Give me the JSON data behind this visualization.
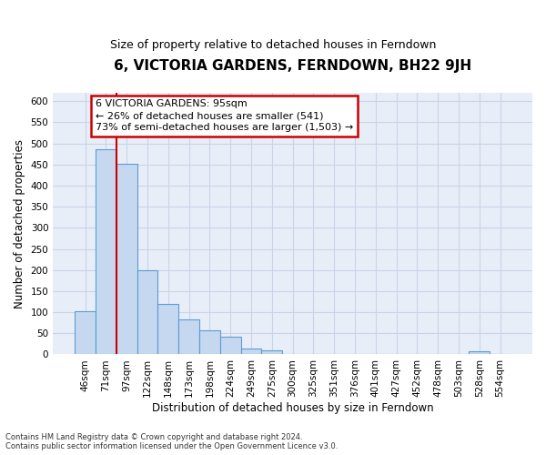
{
  "title": "6, VICTORIA GARDENS, FERNDOWN, BH22 9JH",
  "subtitle": "Size of property relative to detached houses in Ferndown",
  "xlabel": "Distribution of detached houses by size in Ferndown",
  "ylabel": "Number of detached properties",
  "footer_line1": "Contains HM Land Registry data © Crown copyright and database right 2024.",
  "footer_line2": "Contains public sector information licensed under the Open Government Licence v3.0.",
  "annotation_line1": "6 VICTORIA GARDENS: 95sqm",
  "annotation_line2": "← 26% of detached houses are smaller (541)",
  "annotation_line3": "73% of semi-detached houses are larger (1,503) →",
  "bar_labels": [
    "46sqm",
    "71sqm",
    "97sqm",
    "122sqm",
    "148sqm",
    "173sqm",
    "198sqm",
    "224sqm",
    "249sqm",
    "275sqm",
    "300sqm",
    "325sqm",
    "351sqm",
    "376sqm",
    "401sqm",
    "427sqm",
    "452sqm",
    "478sqm",
    "503sqm",
    "528sqm",
    "554sqm"
  ],
  "bar_heights": [
    103,
    487,
    452,
    200,
    120,
    82,
    58,
    42,
    15,
    10,
    0,
    0,
    0,
    0,
    0,
    0,
    0,
    0,
    0,
    7,
    0
  ],
  "bar_color": "#c5d8ef",
  "bar_edge_color": "#5b9bd5",
  "red_line_color": "#cc0000",
  "annotation_box_color": "#ffffff",
  "annotation_box_edge": "#cc0000",
  "ylim": [
    0,
    620
  ],
  "yticks": [
    0,
    50,
    100,
    150,
    200,
    250,
    300,
    350,
    400,
    450,
    500,
    550,
    600
  ],
  "grid_color": "#c8d4e8",
  "bg_color": "#e8eef8",
  "title_fontsize": 11,
  "subtitle_fontsize": 9,
  "axis_label_fontsize": 8.5,
  "tick_fontsize": 7.5,
  "annotation_fontsize": 8
}
